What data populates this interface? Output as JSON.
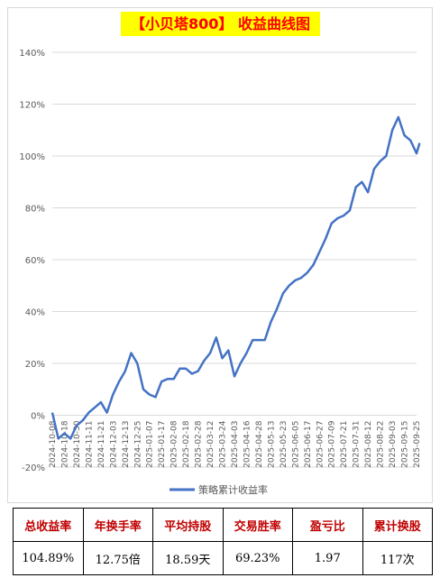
{
  "title": "【小贝塔800】 收益曲线图",
  "colors": {
    "line": "#4472c4",
    "title_bg": "#ffff00",
    "title_text": "#ff0000",
    "stat_header": "#c00000",
    "grid": "#d9d9d9"
  },
  "chart_data": {
    "type": "line",
    "title": "【小贝塔800】 收益曲线图",
    "xlabel": "",
    "ylabel": "",
    "ylim": [
      -20,
      140
    ],
    "yticks": [
      -20,
      0,
      20,
      40,
      60,
      80,
      100,
      120,
      140
    ],
    "ytick_labels": [
      "-20%",
      "0%",
      "20%",
      "40%",
      "60%",
      "80%",
      "100%",
      "120%",
      "140%"
    ],
    "xtick_labels": [
      "2024-10-08",
      "2024-10-18",
      "2024-10-30",
      "2024-11-11",
      "2024-11-21",
      "2024-12-03",
      "2024-12-13",
      "2024-12-25",
      "2025-01-07",
      "2025-01-17",
      "2025-02-08",
      "2025-02-18",
      "2025-02-28",
      "2025-03-12",
      "2025-03-24",
      "2025-04-03",
      "2025-04-16",
      "2025-04-28",
      "2025-05-13",
      "2025-05-23",
      "2025-06-05",
      "2025-06-17",
      "2025-06-27",
      "2025-07-09",
      "2025-07-21",
      "2025-07-31",
      "2025-08-12",
      "2025-08-22",
      "2025-09-03",
      "2025-09-15",
      "2025-09-25"
    ],
    "grid": true,
    "legend": "bottom",
    "series": [
      {
        "name": "策略累计收益率",
        "x": [
          0,
          0.5,
          1,
          1.5,
          2,
          2.5,
          3,
          3.5,
          4,
          4.5,
          5,
          5.5,
          6,
          6.5,
          7,
          7.5,
          8,
          8.5,
          9,
          9.5,
          10,
          10.5,
          11,
          11.5,
          12,
          12.5,
          13,
          13.5,
          14,
          14.5,
          15,
          15.5,
          16,
          16.5,
          17,
          17.5,
          18,
          18.5,
          19,
          19.5,
          20,
          20.5,
          21,
          21.5,
          22,
          22.5,
          23,
          23.5,
          24,
          24.5,
          25,
          25.5,
          26,
          26.5,
          27,
          27.5,
          28,
          28.5,
          29,
          29.5,
          30,
          30.25
        ],
        "values": [
          1,
          -9,
          -7,
          -9,
          -4,
          -2,
          1,
          3,
          5,
          1,
          8,
          13,
          17,
          24,
          20,
          10,
          8,
          7,
          13,
          14,
          14,
          18,
          18,
          16,
          17,
          21,
          24,
          30,
          22,
          25,
          15,
          20,
          24,
          29,
          29,
          29,
          36,
          41,
          47,
          50,
          52,
          53,
          55,
          58,
          63,
          68,
          74,
          76,
          77,
          79,
          88,
          90,
          86,
          95,
          98,
          100,
          110,
          115,
          108,
          106,
          101,
          105
        ]
      }
    ]
  },
  "legend": {
    "label": "策略累计收益率"
  },
  "stats": {
    "headers": [
      "总收益率",
      "年换手率",
      "平均持股",
      "交易胜率",
      "盈亏比",
      "累计换股"
    ],
    "values": [
      "104.89%",
      "12.75倍",
      "18.59天",
      "69.23%",
      "1.97",
      "117次"
    ]
  }
}
